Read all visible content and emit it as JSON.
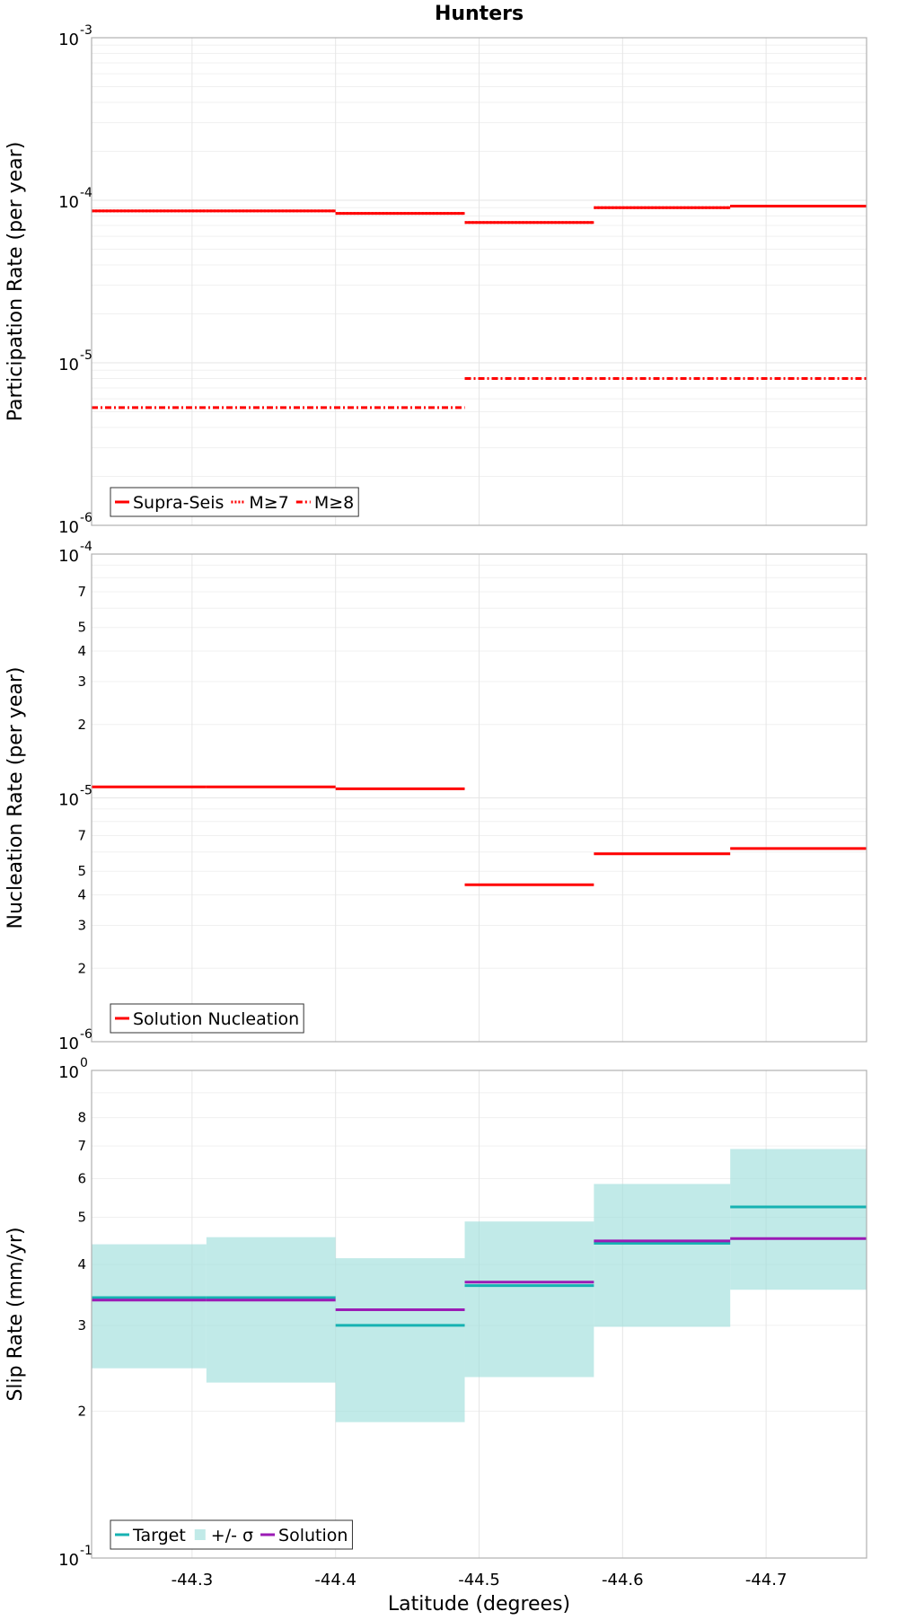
{
  "chart_data": {
    "type": "line",
    "title": "Hunters",
    "xlabel": "Latitude (degrees)",
    "xlim": [
      -44.23,
      -44.77
    ],
    "x_ticks": [
      {
        "value": -44.3,
        "label": "-44.3"
      },
      {
        "value": -44.4,
        "label": "-44.4"
      },
      {
        "value": -44.5,
        "label": "-44.5"
      },
      {
        "value": -44.6,
        "label": "-44.6"
      },
      {
        "value": -44.7,
        "label": "-44.7"
      }
    ],
    "panels": [
      {
        "ylabel": "Participation Rate (per year)",
        "yscale": "log",
        "ylim": [
          1e-06,
          0.001
        ],
        "y_tick_labels": [
          {
            "value": 1e-06,
            "base": "10",
            "exp": "-6"
          },
          {
            "value": 1e-05,
            "base": "10",
            "exp": "-5"
          },
          {
            "value": 0.0001,
            "base": "10",
            "exp": "-4"
          },
          {
            "value": 0.001,
            "base": "10",
            "exp": "-3"
          }
        ],
        "minor_labels": [],
        "grid": true,
        "legend": "bottom-left",
        "series": [
          {
            "name": "Supra-Seis",
            "color": "#ff0000",
            "dash": "solid",
            "segments": [
              {
                "x0": -44.23,
                "x1": -44.31,
                "y": 8.6e-05
              },
              {
                "x0": -44.31,
                "x1": -44.4,
                "y": 8.6e-05
              },
              {
                "x0": -44.4,
                "x1": -44.49,
                "y": 8.3e-05
              },
              {
                "x0": -44.49,
                "x1": -44.58,
                "y": 7.3e-05
              },
              {
                "x0": -44.58,
                "x1": -44.675,
                "y": 9e-05
              },
              {
                "x0": -44.675,
                "x1": -44.77,
                "y": 9.2e-05
              }
            ]
          },
          {
            "name": "M≥7",
            "color": "#ff0000",
            "dash": "dotted",
            "segments": [
              {
                "x0": -44.23,
                "x1": -44.31,
                "y": 8.6e-05
              },
              {
                "x0": -44.31,
                "x1": -44.4,
                "y": 8.6e-05
              },
              {
                "x0": -44.4,
                "x1": -44.49,
                "y": 8.3e-05
              },
              {
                "x0": -44.49,
                "x1": -44.58,
                "y": 7.3e-05
              },
              {
                "x0": -44.58,
                "x1": -44.675,
                "y": 9e-05
              },
              {
                "x0": -44.675,
                "x1": -44.77,
                "y": 9.2e-05
              }
            ]
          },
          {
            "name": "M≥8",
            "color": "#ff0000",
            "dash": "dashdot",
            "segments": [
              {
                "x0": -44.23,
                "x1": -44.49,
                "y": 5.3e-06
              },
              {
                "x0": -44.49,
                "x1": -44.77,
                "y": 8e-06
              }
            ]
          }
        ]
      },
      {
        "ylabel": "Nucleation Rate (per year)",
        "yscale": "log",
        "ylim": [
          1e-06,
          0.0001
        ],
        "y_tick_labels": [
          {
            "value": 1e-06,
            "base": "10",
            "exp": "-6"
          },
          {
            "value": 1e-05,
            "base": "10",
            "exp": "-5"
          },
          {
            "value": 0.0001,
            "base": "10",
            "exp": "-4"
          }
        ],
        "minor_labels": [
          {
            "value": 2e-06,
            "label": "2"
          },
          {
            "value": 3e-06,
            "label": "3"
          },
          {
            "value": 4e-06,
            "label": "4"
          },
          {
            "value": 5e-06,
            "label": "5"
          },
          {
            "value": 7e-06,
            "label": "7"
          },
          {
            "value": 2e-05,
            "label": "2"
          },
          {
            "value": 3e-05,
            "label": "3"
          },
          {
            "value": 4e-05,
            "label": "4"
          },
          {
            "value": 5e-05,
            "label": "5"
          },
          {
            "value": 7e-05,
            "label": "7"
          }
        ],
        "grid": true,
        "legend": "bottom-left",
        "series": [
          {
            "name": "Solution Nucleation",
            "color": "#ff0000",
            "dash": "solid",
            "segments": [
              {
                "x0": -44.23,
                "x1": -44.31,
                "y": 1.11e-05
              },
              {
                "x0": -44.31,
                "x1": -44.4,
                "y": 1.11e-05
              },
              {
                "x0": -44.4,
                "x1": -44.49,
                "y": 1.09e-05
              },
              {
                "x0": -44.49,
                "x1": -44.58,
                "y": 4.4e-06
              },
              {
                "x0": -44.58,
                "x1": -44.675,
                "y": 5.9e-06
              },
              {
                "x0": -44.675,
                "x1": -44.77,
                "y": 6.2e-06
              }
            ]
          }
        ]
      },
      {
        "ylabel": "Slip Rate (mm/yr)",
        "yscale": "log",
        "ylim": [
          0.1,
          1.0
        ],
        "y_tick_labels": [
          {
            "value": 0.1,
            "base": "10",
            "exp": "-1"
          },
          {
            "value": 1.0,
            "base": "10",
            "exp": "0"
          }
        ],
        "minor_labels": [
          {
            "value": 0.2,
            "label": "2"
          },
          {
            "value": 0.3,
            "label": "3"
          },
          {
            "value": 0.4,
            "label": "4"
          },
          {
            "value": 0.5,
            "label": "5"
          },
          {
            "value": 0.6,
            "label": "6"
          },
          {
            "value": 0.7,
            "label": "7"
          },
          {
            "value": 0.8,
            "label": "8"
          }
        ],
        "grid": true,
        "legend": "bottom-left",
        "bands": [
          {
            "name": "+/- σ",
            "color": "#9fdfdc",
            "segments": [
              {
                "x0": -44.23,
                "x1": -44.31,
                "low": 0.245,
                "high": 0.44
              },
              {
                "x0": -44.31,
                "x1": -44.4,
                "low": 0.229,
                "high": 0.455
              },
              {
                "x0": -44.4,
                "x1": -44.49,
                "low": 0.19,
                "high": 0.412
              },
              {
                "x0": -44.49,
                "x1": -44.58,
                "low": 0.235,
                "high": 0.49
              },
              {
                "x0": -44.58,
                "x1": -44.675,
                "low": 0.298,
                "high": 0.585
              },
              {
                "x0": -44.675,
                "x1": -44.77,
                "low": 0.355,
                "high": 0.69
              }
            ]
          }
        ],
        "series": [
          {
            "name": "Target",
            "color": "#16b2b2",
            "dash": "solid",
            "segments": [
              {
                "x0": -44.23,
                "x1": -44.31,
                "y": 0.342
              },
              {
                "x0": -44.31,
                "x1": -44.4,
                "y": 0.342
              },
              {
                "x0": -44.4,
                "x1": -44.49,
                "y": 0.3
              },
              {
                "x0": -44.49,
                "x1": -44.58,
                "y": 0.362
              },
              {
                "x0": -44.58,
                "x1": -44.675,
                "y": 0.442
              },
              {
                "x0": -44.675,
                "x1": -44.77,
                "y": 0.525
              }
            ]
          },
          {
            "name": "Solution",
            "color": "#9b1bb5",
            "dash": "solid",
            "segments": [
              {
                "x0": -44.23,
                "x1": -44.31,
                "y": 0.338
              },
              {
                "x0": -44.31,
                "x1": -44.4,
                "y": 0.338
              },
              {
                "x0": -44.4,
                "x1": -44.49,
                "y": 0.323
              },
              {
                "x0": -44.49,
                "x1": -44.58,
                "y": 0.368
              },
              {
                "x0": -44.58,
                "x1": -44.675,
                "y": 0.447
              },
              {
                "x0": -44.675,
                "x1": -44.77,
                "y": 0.452
              }
            ]
          }
        ],
        "legend_order": [
          "Target",
          "+/- σ",
          "Solution"
        ]
      }
    ]
  }
}
